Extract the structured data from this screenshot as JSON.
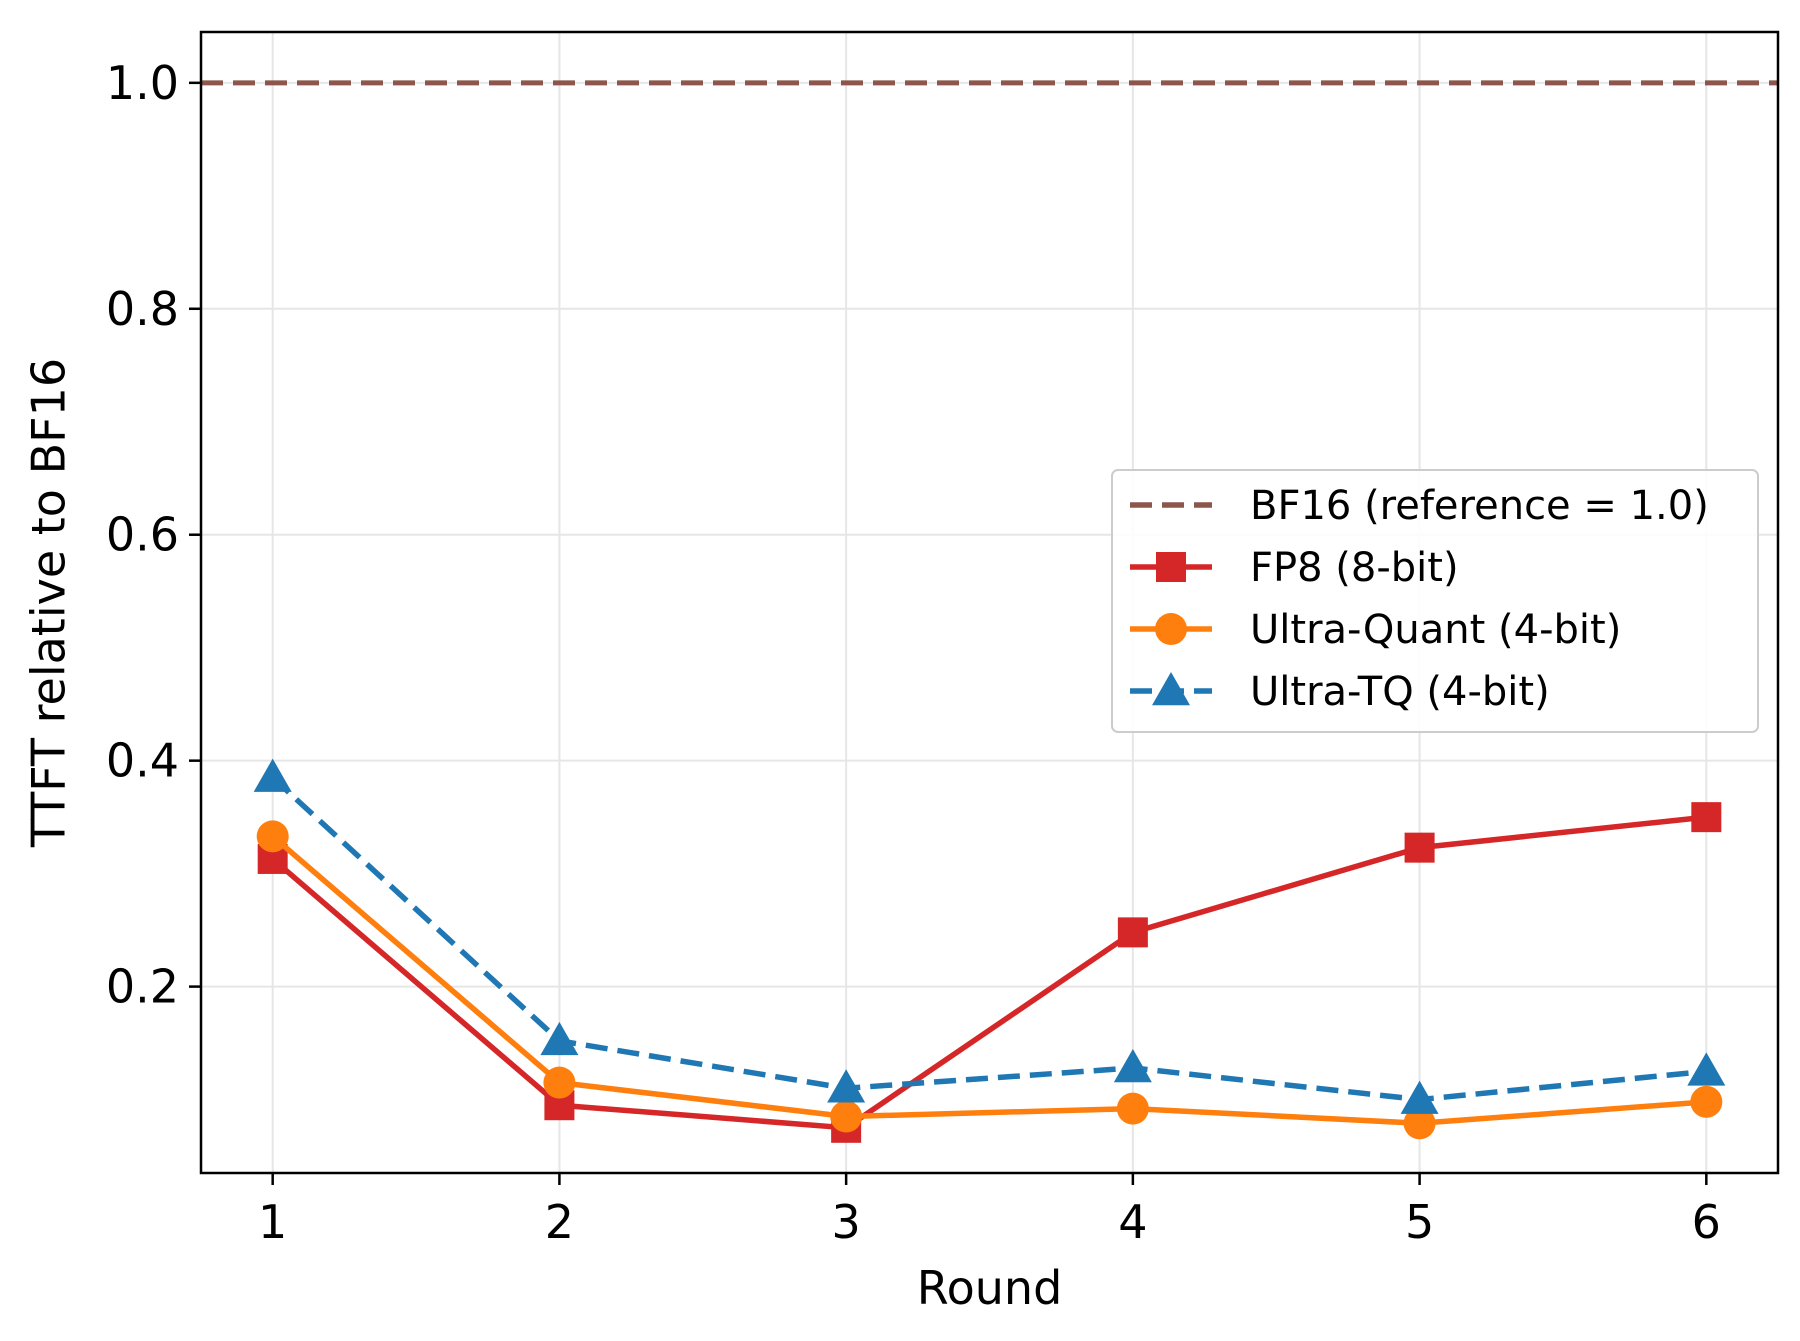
{
  "chart_data": {
    "type": "line",
    "title": "",
    "xlabel": "Round",
    "ylabel": "TTFT relative to BF16",
    "x": [
      1,
      2,
      3,
      4,
      5,
      6
    ],
    "xticks": [
      "1",
      "2",
      "3",
      "4",
      "5",
      "6"
    ],
    "yticks": [
      "0.2",
      "0.4",
      "0.6",
      "0.8",
      "1.0"
    ],
    "xlim": [
      0.75,
      6.25
    ],
    "ylim": [
      0.035,
      1.045
    ],
    "grid": true,
    "legend_position": "center-right",
    "reference": {
      "name": "BF16 (reference = 1.0)",
      "value": 1.0,
      "color": "#8c564b",
      "style": "dashed"
    },
    "series": [
      {
        "name": "FP8 (8-bit)",
        "color": "#d62728",
        "marker": "square",
        "style": "solid",
        "values": [
          0.313,
          0.095,
          0.075,
          0.248,
          0.323,
          0.35
        ]
      },
      {
        "name": "Ultra-Quant (4-bit)",
        "color": "#ff7f0e",
        "marker": "circle",
        "style": "solid",
        "values": [
          0.333,
          0.115,
          0.085,
          0.092,
          0.079,
          0.098
        ]
      },
      {
        "name": "Ultra-TQ (4-bit)",
        "color": "#1f77b4",
        "marker": "triangle",
        "style": "dashed",
        "values": [
          0.385,
          0.152,
          0.11,
          0.128,
          0.1,
          0.125
        ]
      }
    ]
  }
}
